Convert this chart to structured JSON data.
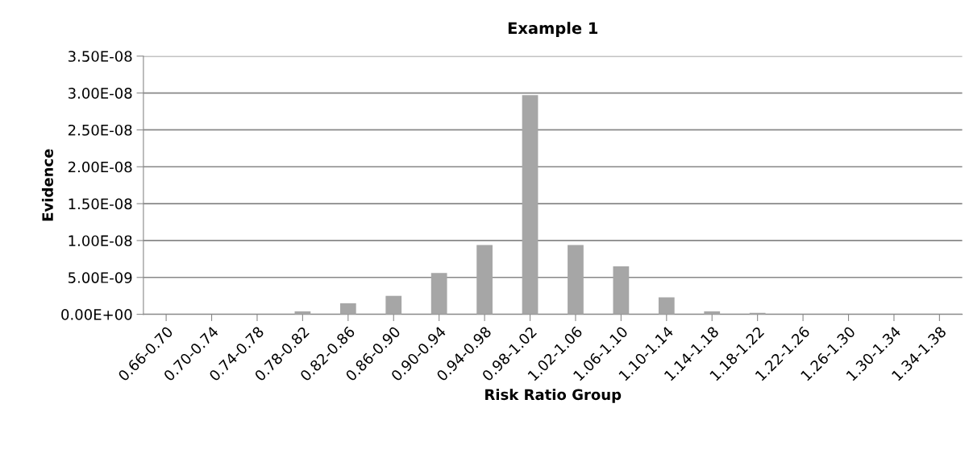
{
  "chart_data": {
    "type": "bar",
    "title": "Example 1",
    "xlabel": "Risk Ratio Group",
    "ylabel": "Evidence",
    "categories": [
      "0.66-0.70",
      "0.70-0.74",
      "0.74-0.78",
      "0.78-0.82",
      "0.82-0.86",
      "0.86-0.90",
      "0.90-0.94",
      "0.94-0.98",
      "0.98-1.02",
      "1.02-1.06",
      "1.06-1.10",
      "1.10-1.14",
      "1.14-1.18",
      "1.18-1.22",
      "1.22-1.26",
      "1.26-1.30",
      "1.30-1.34",
      "1.34-1.38"
    ],
    "values": [
      0,
      0,
      0,
      4e-10,
      1.5e-09,
      2.5e-09,
      5.6e-09,
      9.4e-09,
      2.97e-08,
      9.4e-09,
      6.5e-09,
      2.3e-09,
      4e-10,
      2e-10,
      0,
      0,
      0,
      0
    ],
    "color": "#a6a6a6",
    "ylim": [
      0,
      3.5e-08
    ],
    "yticks": [
      {
        "value": 0,
        "label": "0.00E+00"
      },
      {
        "value": 5e-09,
        "label": "5.00E-09"
      },
      {
        "value": 1e-08,
        "label": "1.00E-08"
      },
      {
        "value": 1.5e-08,
        "label": "1.50E-08"
      },
      {
        "value": 2e-08,
        "label": "2.00E-08"
      },
      {
        "value": 2.5e-08,
        "label": "2.50E-08"
      },
      {
        "value": 3e-08,
        "label": "3.00E-08"
      },
      {
        "value": 3.5e-08,
        "label": "3.50E-08"
      }
    ],
    "grid": "y"
  }
}
